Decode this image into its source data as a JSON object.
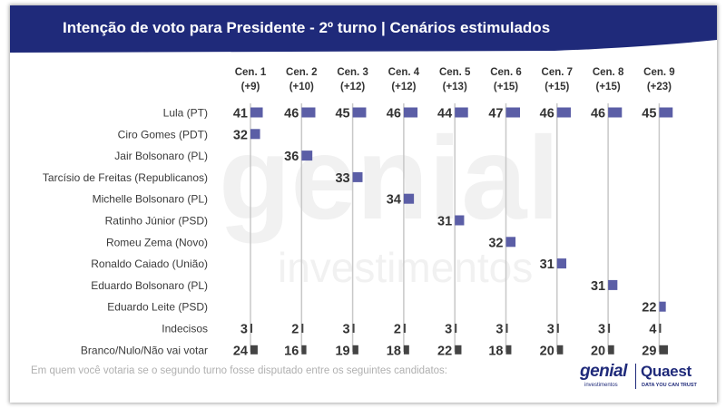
{
  "header": {
    "title": "Intenção de voto para Presidente - 2º turno | Cenários estimulados",
    "background_color": "#1f2a7a"
  },
  "footnote": "Em quem você votaria se o segundo turno fosse disputado entre os seguintes candidatos:",
  "logos": {
    "genial": "genial",
    "genial_sub": "investimentos",
    "quaest": "Quaest",
    "quaest_sub": "DATA YOU CAN TRUST"
  },
  "watermark": {
    "line1": "genial",
    "line2": "investimentos"
  },
  "chart_data": {
    "type": "bar",
    "title": "Intenção de voto para Presidente - 2º turno | Cenários estimulados",
    "orientation": "horizontal small multiples",
    "scenarios": [
      {
        "name": "Cen. 1",
        "margin": "(+9)"
      },
      {
        "name": "Cen. 2",
        "margin": "(+10)"
      },
      {
        "name": "Cen. 3",
        "margin": "(+12)"
      },
      {
        "name": "Cen. 4",
        "margin": "(+12)"
      },
      {
        "name": "Cen. 5",
        "margin": "(+13)"
      },
      {
        "name": "Cen. 6",
        "margin": "(+15)"
      },
      {
        "name": "Cen. 7",
        "margin": "(+15)"
      },
      {
        "name": "Cen. 8",
        "margin": "(+15)"
      },
      {
        "name": "Cen. 9",
        "margin": "(+23)"
      }
    ],
    "rows": [
      {
        "label": "Lula (PT)",
        "kind": "candidate",
        "values": [
          41,
          46,
          45,
          46,
          44,
          47,
          46,
          46,
          45
        ]
      },
      {
        "label": "Ciro Gomes (PDT)",
        "kind": "candidate",
        "values": [
          32,
          null,
          null,
          null,
          null,
          null,
          null,
          null,
          null
        ]
      },
      {
        "label": "Jair Bolsonaro (PL)",
        "kind": "candidate",
        "values": [
          null,
          36,
          null,
          null,
          null,
          null,
          null,
          null,
          null
        ]
      },
      {
        "label": "Tarcísio de Freitas (Republicanos)",
        "kind": "candidate",
        "values": [
          null,
          null,
          33,
          null,
          null,
          null,
          null,
          null,
          null
        ]
      },
      {
        "label": "Michelle Bolsonaro (PL)",
        "kind": "candidate",
        "values": [
          null,
          null,
          null,
          34,
          null,
          null,
          null,
          null,
          null
        ]
      },
      {
        "label": "Ratinho Júnior (PSD)",
        "kind": "candidate",
        "values": [
          null,
          null,
          null,
          null,
          31,
          null,
          null,
          null,
          null
        ]
      },
      {
        "label": "Romeu Zema (Novo)",
        "kind": "candidate",
        "values": [
          null,
          null,
          null,
          null,
          null,
          32,
          null,
          null,
          null
        ]
      },
      {
        "label": "Ronaldo Caiado (União)",
        "kind": "candidate",
        "values": [
          null,
          null,
          null,
          null,
          null,
          null,
          31,
          null,
          null
        ]
      },
      {
        "label": "Eduardo Bolsonaro (PL)",
        "kind": "candidate",
        "values": [
          null,
          null,
          null,
          null,
          null,
          null,
          null,
          31,
          null
        ]
      },
      {
        "label": "Eduardo Leite (PSD)",
        "kind": "candidate",
        "values": [
          null,
          null,
          null,
          null,
          null,
          null,
          null,
          null,
          22
        ]
      },
      {
        "label": "Indecisos",
        "kind": "other",
        "values": [
          3,
          2,
          3,
          2,
          3,
          3,
          3,
          3,
          4
        ]
      },
      {
        "label": "Branco/Nulo/Não vai votar",
        "kind": "other",
        "values": [
          24,
          16,
          19,
          18,
          22,
          18,
          20,
          20,
          29
        ]
      }
    ],
    "colors": {
      "candidate": "#5b5ea6",
      "other": "#444444",
      "baseline": "#c8c8c8",
      "text": "#333333"
    }
  }
}
